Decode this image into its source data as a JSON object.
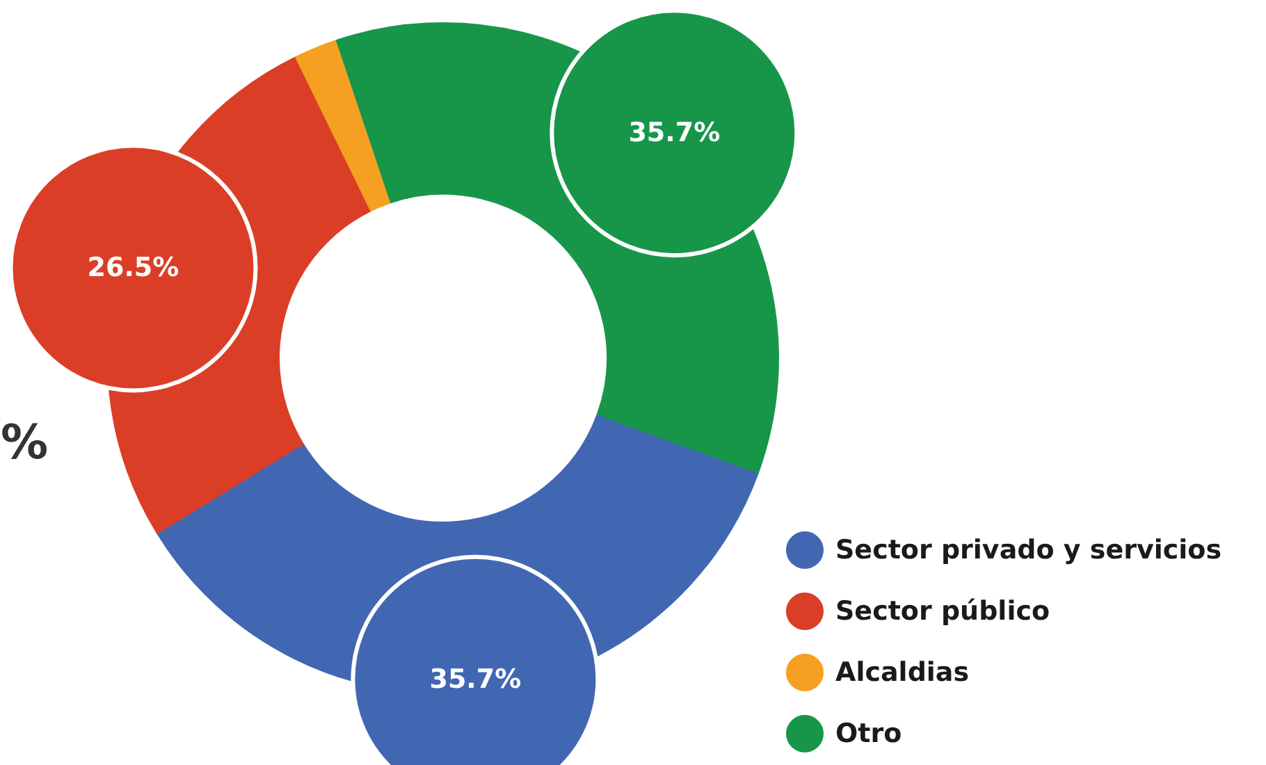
{
  "chart_data": {
    "type": "donut",
    "categories": [
      "Sector privado y servicios",
      "Sector público",
      "Alcaldias",
      "Otro"
    ],
    "values": [
      35.7,
      26.5,
      2.1,
      35.7
    ],
    "colors": [
      "#4267b2",
      "#db3e26",
      "#f5a020",
      "#17964a"
    ],
    "value_labels": [
      "35.7%",
      "26.5%",
      null,
      "35.7%"
    ],
    "annotations": [
      "%"
    ],
    "legend": "bottom right"
  }
}
